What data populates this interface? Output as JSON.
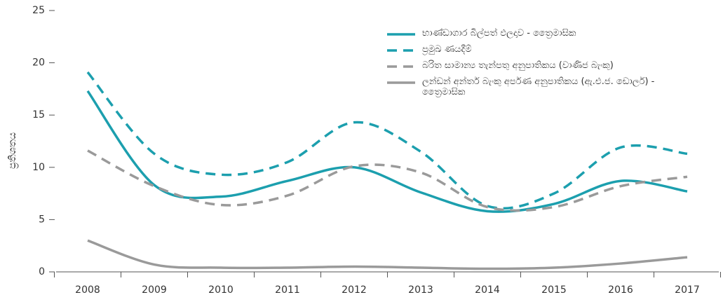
{
  "chart_data": {
    "type": "line",
    "y_label": "ප්‍රතිශතය",
    "categories": [
      "2008",
      "2009",
      "2010",
      "2011",
      "2012",
      "2013",
      "2014",
      "2015",
      "2016",
      "2017"
    ],
    "series": [
      {
        "name": "භාණ්ඩාගාර බිල්පත් ඵලදාව - ත්‍රෛමාසික",
        "color": "#1c9fae",
        "dash": false,
        "values": [
          17.3,
          8.3,
          7.2,
          8.7,
          10.0,
          7.6,
          5.8,
          6.5,
          8.7,
          7.7
        ]
      },
      {
        "name": "ප්‍රමුඛ ණයදීම්",
        "color": "#1c9fae",
        "dash": true,
        "values": [
          19.1,
          11.3,
          9.3,
          10.5,
          14.3,
          11.5,
          6.3,
          7.5,
          11.9,
          11.3
        ]
      },
      {
        "name": "බරිත සාමාන්‍ය තැන්පතු අනුපාතිකය (වාණිජ බැංකු)",
        "color": "#9a9a9a",
        "dash": true,
        "values": [
          11.6,
          8.2,
          6.4,
          7.3,
          10.1,
          9.5,
          6.2,
          6.2,
          8.2,
          9.1
        ]
      },
      {
        "name": "ලන්ඩන් අන්තර් බැංකු අර්පණ අනුපාතිකය (ඇ.එ.ජ. ඩොලර්) - ත්‍රෛමාසික",
        "color": "#9a9a9a",
        "dash": false,
        "values": [
          3.0,
          0.7,
          0.4,
          0.4,
          0.5,
          0.4,
          0.3,
          0.4,
          0.8,
          1.4
        ]
      }
    ],
    "ylim": [
      0,
      25
    ],
    "yticks": [
      0,
      5,
      10,
      15,
      20,
      25
    ]
  }
}
